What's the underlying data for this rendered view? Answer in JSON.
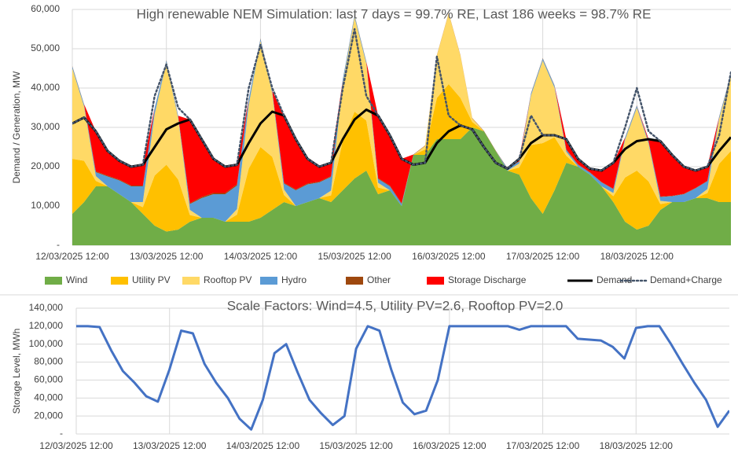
{
  "chart_data": [
    {
      "type": "area",
      "stacked": true,
      "title": "High renewable NEM Simulation: last 7 days = 99.7% RE, Last 186 weeks = 98.7% RE",
      "y_label": "Demand / Generation, MW",
      "x": [
        45728.5,
        45728.625,
        45728.75,
        45728.875,
        45729,
        45729.125,
        45729.25,
        45729.375,
        45729.5,
        45729.625,
        45729.75,
        45729.875,
        45730,
        45730.125,
        45730.25,
        45730.375,
        45730.5,
        45730.625,
        45730.75,
        45730.875,
        45731,
        45731.125,
        45731.25,
        45731.375,
        45731.5,
        45731.625,
        45731.75,
        45731.875,
        45732,
        45732.125,
        45732.25,
        45732.375,
        45732.5,
        45732.625,
        45732.75,
        45732.875,
        45733,
        45733.125,
        45733.25,
        45733.375,
        45733.5,
        45733.625,
        45733.75,
        45733.875,
        45734,
        45734.125,
        45734.25,
        45734.375,
        45734.5,
        45734.625,
        45734.75,
        45734.875,
        45735,
        45735.125,
        45735.25,
        45735.375,
        45735.5
      ],
      "xlim": [
        45728.5,
        45735.5
      ],
      "xticks": [
        {
          "value": 45728.5,
          "label": "12/03/2025 12:00"
        },
        {
          "value": 45729.5,
          "label": "13/03/2025 12:00"
        },
        {
          "value": 45730.5,
          "label": "14/03/2025 12:00"
        },
        {
          "value": 45731.5,
          "label": "15/03/2025 12:00"
        },
        {
          "value": 45732.5,
          "label": "16/03/2025 12:00"
        },
        {
          "value": 45733.5,
          "label": "17/03/2025 12:00"
        },
        {
          "value": 45734.5,
          "label": "18/03/2025 12:00"
        }
      ],
      "ylim": [
        0,
        60000
      ],
      "yticks": [
        {
          "value": 0,
          "label": "-"
        },
        {
          "value": 10000,
          "label": "10,000"
        },
        {
          "value": 20000,
          "label": "20,000"
        },
        {
          "value": 30000,
          "label": "30,000"
        },
        {
          "value": 40000,
          "label": "40,000"
        },
        {
          "value": 50000,
          "label": "50,000"
        },
        {
          "value": 60000,
          "label": "60,000"
        }
      ],
      "grid": true,
      "xgrid": true,
      "legend": "bottom",
      "series": [
        {
          "name": "Wind",
          "color": "#70ad47",
          "values": [
            8000,
            11000,
            15000,
            15000,
            13000,
            11000,
            8000,
            5000,
            3500,
            4000,
            6000,
            7000,
            7000,
            6000,
            6000,
            6000,
            7000,
            9000,
            11000,
            10000,
            11000,
            12000,
            11000,
            14000,
            17000,
            19000,
            13000,
            14000,
            10000,
            23000,
            23000,
            27000,
            27000,
            27000,
            30000,
            29000,
            24000,
            19000,
            18000,
            12000,
            8000,
            14000,
            21000,
            20000,
            18000,
            15000,
            11000,
            6000,
            4000,
            5000,
            9000,
            11000,
            11000,
            12000,
            12000,
            11000,
            11000
          ]
        },
        {
          "name": "Utility PV",
          "color": "#ffc000",
          "values": [
            14000,
            10500,
            1400,
            0,
            0,
            0,
            1700,
            12750,
            17000,
            12750,
            1700,
            0,
            0,
            0,
            1800,
            13500,
            18000,
            13500,
            1800,
            0,
            0,
            0,
            1700,
            12750,
            17000,
            12750,
            1700,
            0,
            0,
            0,
            1400,
            10500,
            14000,
            10500,
            1400,
            0,
            0,
            0,
            1800,
            13500,
            18000,
            13500,
            1800,
            0,
            0,
            0,
            1500,
            11250,
            15000,
            11250,
            1500,
            0,
            0,
            0,
            1300,
            9750,
            13000
          ]
        },
        {
          "name": "Rooftop PV",
          "color": "#ffd966",
          "values": [
            23000,
            13800,
            1200,
            0,
            0,
            0,
            1300,
            15600,
            26000,
            15600,
            1300,
            0,
            0,
            0,
            1400,
            16200,
            27000,
            16200,
            1400,
            0,
            0,
            0,
            1200,
            14400,
            24000,
            14400,
            1200,
            0,
            0,
            0,
            900,
            10800,
            18000,
            10800,
            900,
            0,
            0,
            0,
            1000,
            12600,
            21000,
            12600,
            1000,
            0,
            0,
            0,
            800,
            9600,
            16000,
            9600,
            800,
            0,
            0,
            0,
            1000,
            11400,
            19000
          ]
        },
        {
          "name": "Hydro",
          "color": "#5b9bd5",
          "values": [
            500,
            500,
            1000,
            2500,
            3500,
            4000,
            4000,
            1500,
            500,
            500,
            1500,
            5000,
            6000,
            7000,
            6000,
            1500,
            500,
            500,
            1500,
            4000,
            4500,
            4000,
            3500,
            1000,
            500,
            500,
            1000,
            1000,
            500,
            0,
            0,
            0,
            0,
            0,
            0,
            0,
            0,
            500,
            500,
            500,
            500,
            500,
            500,
            500,
            500,
            1000,
            1000,
            500,
            500,
            500,
            1000,
            1500,
            2000,
            2500,
            2000,
            500,
            500
          ]
        },
        {
          "name": "Other",
          "color": "#9e480e",
          "values": [
            100,
            100,
            200,
            200,
            200,
            200,
            200,
            100,
            100,
            100,
            200,
            300,
            300,
            300,
            300,
            100,
            100,
            100,
            200,
            200,
            200,
            200,
            200,
            100,
            100,
            100,
            200,
            200,
            200,
            100,
            100,
            100,
            100,
            100,
            100,
            100,
            100,
            100,
            100,
            100,
            100,
            100,
            100,
            100,
            100,
            100,
            100,
            100,
            100,
            100,
            100,
            100,
            100,
            100,
            100,
            100,
            100
          ]
        },
        {
          "name": "Storage Discharge",
          "color": "#ff0000",
          "values": [
            0,
            0,
            10200,
            6300,
            4800,
            4800,
            5300,
            0,
            0,
            0,
            21300,
            14700,
            8700,
            6700,
            5000,
            0,
            0,
            0,
            17100,
            12800,
            6300,
            3800,
            3400,
            0,
            0,
            0,
            15900,
            12800,
            11300,
            0,
            0,
            0,
            0,
            0,
            0,
            0,
            0,
            0,
            600,
            0,
            0,
            0,
            2600,
            1400,
            900,
            2900,
            6600,
            0,
            0,
            550,
            14100,
            10400,
            6900,
            4400,
            3600,
            0,
            0
          ]
        },
        {
          "name": "Demand",
          "color": "#000000",
          "type": "line",
          "values": [
            31000,
            32500,
            29000,
            24000,
            21500,
            20000,
            20500,
            25000,
            29500,
            31000,
            32000,
            27000,
            22000,
            20000,
            20500,
            26000,
            31000,
            34000,
            33000,
            27000,
            22000,
            20000,
            21000,
            27000,
            32000,
            34500,
            33000,
            28000,
            22000,
            20500,
            21000,
            26000,
            29000,
            30500,
            29500,
            25000,
            21000,
            19500,
            22000,
            26000,
            28000,
            28000,
            27000,
            22000,
            19500,
            19000,
            21000,
            24500,
            26500,
            27000,
            26500,
            23000,
            20000,
            19000,
            20000,
            24000,
            27500
          ]
        },
        {
          "name": "Demand+Charge",
          "color": "#44546a",
          "type": "line",
          "line_style": "dotted",
          "values": [
            31000,
            32500,
            29000,
            24000,
            21500,
            20000,
            20500,
            38000,
            46000,
            35000,
            32000,
            27000,
            22000,
            20000,
            20500,
            40000,
            51000,
            40000,
            33000,
            27000,
            22000,
            20000,
            21000,
            40000,
            55000,
            38000,
            33000,
            28000,
            22000,
            20500,
            21000,
            48000,
            33000,
            30500,
            29500,
            25000,
            21000,
            19500,
            22000,
            33000,
            28000,
            28000,
            27000,
            22000,
            19500,
            19000,
            21000,
            30000,
            40000,
            29000,
            26500,
            23000,
            20000,
            19000,
            20000,
            28000,
            44000
          ]
        }
      ]
    },
    {
      "type": "line",
      "title": "Scale Factors: Wind=4.5, Utility PV=2.6, Rooftop PV=2.0",
      "y_label": "Storage Level, MWh",
      "x": [
        45728.5,
        45728.625,
        45728.75,
        45728.875,
        45729,
        45729.125,
        45729.25,
        45729.375,
        45729.5,
        45729.625,
        45729.75,
        45729.875,
        45730,
        45730.125,
        45730.25,
        45730.375,
        45730.5,
        45730.625,
        45730.75,
        45730.875,
        45731,
        45731.125,
        45731.25,
        45731.375,
        45731.5,
        45731.625,
        45731.75,
        45731.875,
        45732,
        45732.125,
        45732.25,
        45732.375,
        45732.5,
        45732.625,
        45732.75,
        45732.875,
        45733,
        45733.125,
        45733.25,
        45733.375,
        45733.5,
        45733.625,
        45733.75,
        45733.875,
        45734,
        45734.125,
        45734.25,
        45734.375,
        45734.5,
        45734.625,
        45734.75,
        45734.875,
        45735,
        45735.125,
        45735.25,
        45735.375,
        45735.5
      ],
      "xlim": [
        45728.5,
        45735.5
      ],
      "xticks": [
        {
          "value": 45728.5,
          "label": "12/03/2025 12:00"
        },
        {
          "value": 45729.5,
          "label": "13/03/2025 12:00"
        },
        {
          "value": 45730.5,
          "label": "14/03/2025 12:00"
        },
        {
          "value": 45731.5,
          "label": "15/03/2025 12:00"
        },
        {
          "value": 45732.5,
          "label": "16/03/2025 12:00"
        },
        {
          "value": 45733.5,
          "label": "17/03/2025 12:00"
        },
        {
          "value": 45734.5,
          "label": "18/03/2025 12:00"
        }
      ],
      "ylim": [
        0,
        140000
      ],
      "yticks": [
        {
          "value": 0,
          "label": "-"
        },
        {
          "value": 20000,
          "label": "20,000"
        },
        {
          "value": 40000,
          "label": "40,000"
        },
        {
          "value": 60000,
          "label": "60,000"
        },
        {
          "value": 80000,
          "label": "80,000"
        },
        {
          "value": 100000,
          "label": "100,000"
        },
        {
          "value": 120000,
          "label": "120,000"
        },
        {
          "value": 140000,
          "label": "140,000"
        }
      ],
      "grid": true,
      "xgrid": true,
      "color": "#4472c4",
      "values": [
        120000,
        120000,
        119000,
        93000,
        70000,
        57000,
        42000,
        36000,
        72000,
        115000,
        112000,
        78000,
        57000,
        40000,
        17000,
        5000,
        38000,
        90000,
        100000,
        68000,
        38000,
        23000,
        10000,
        20000,
        95000,
        120000,
        115000,
        72000,
        35000,
        22000,
        26000,
        60000,
        120000,
        120000,
        120000,
        120000,
        120000,
        120000,
        116000,
        120000,
        120000,
        120000,
        120000,
        106000,
        105000,
        104000,
        97000,
        84000,
        118000,
        120000,
        120000,
        100000,
        78000,
        57000,
        38000,
        8000,
        26000
      ]
    }
  ]
}
